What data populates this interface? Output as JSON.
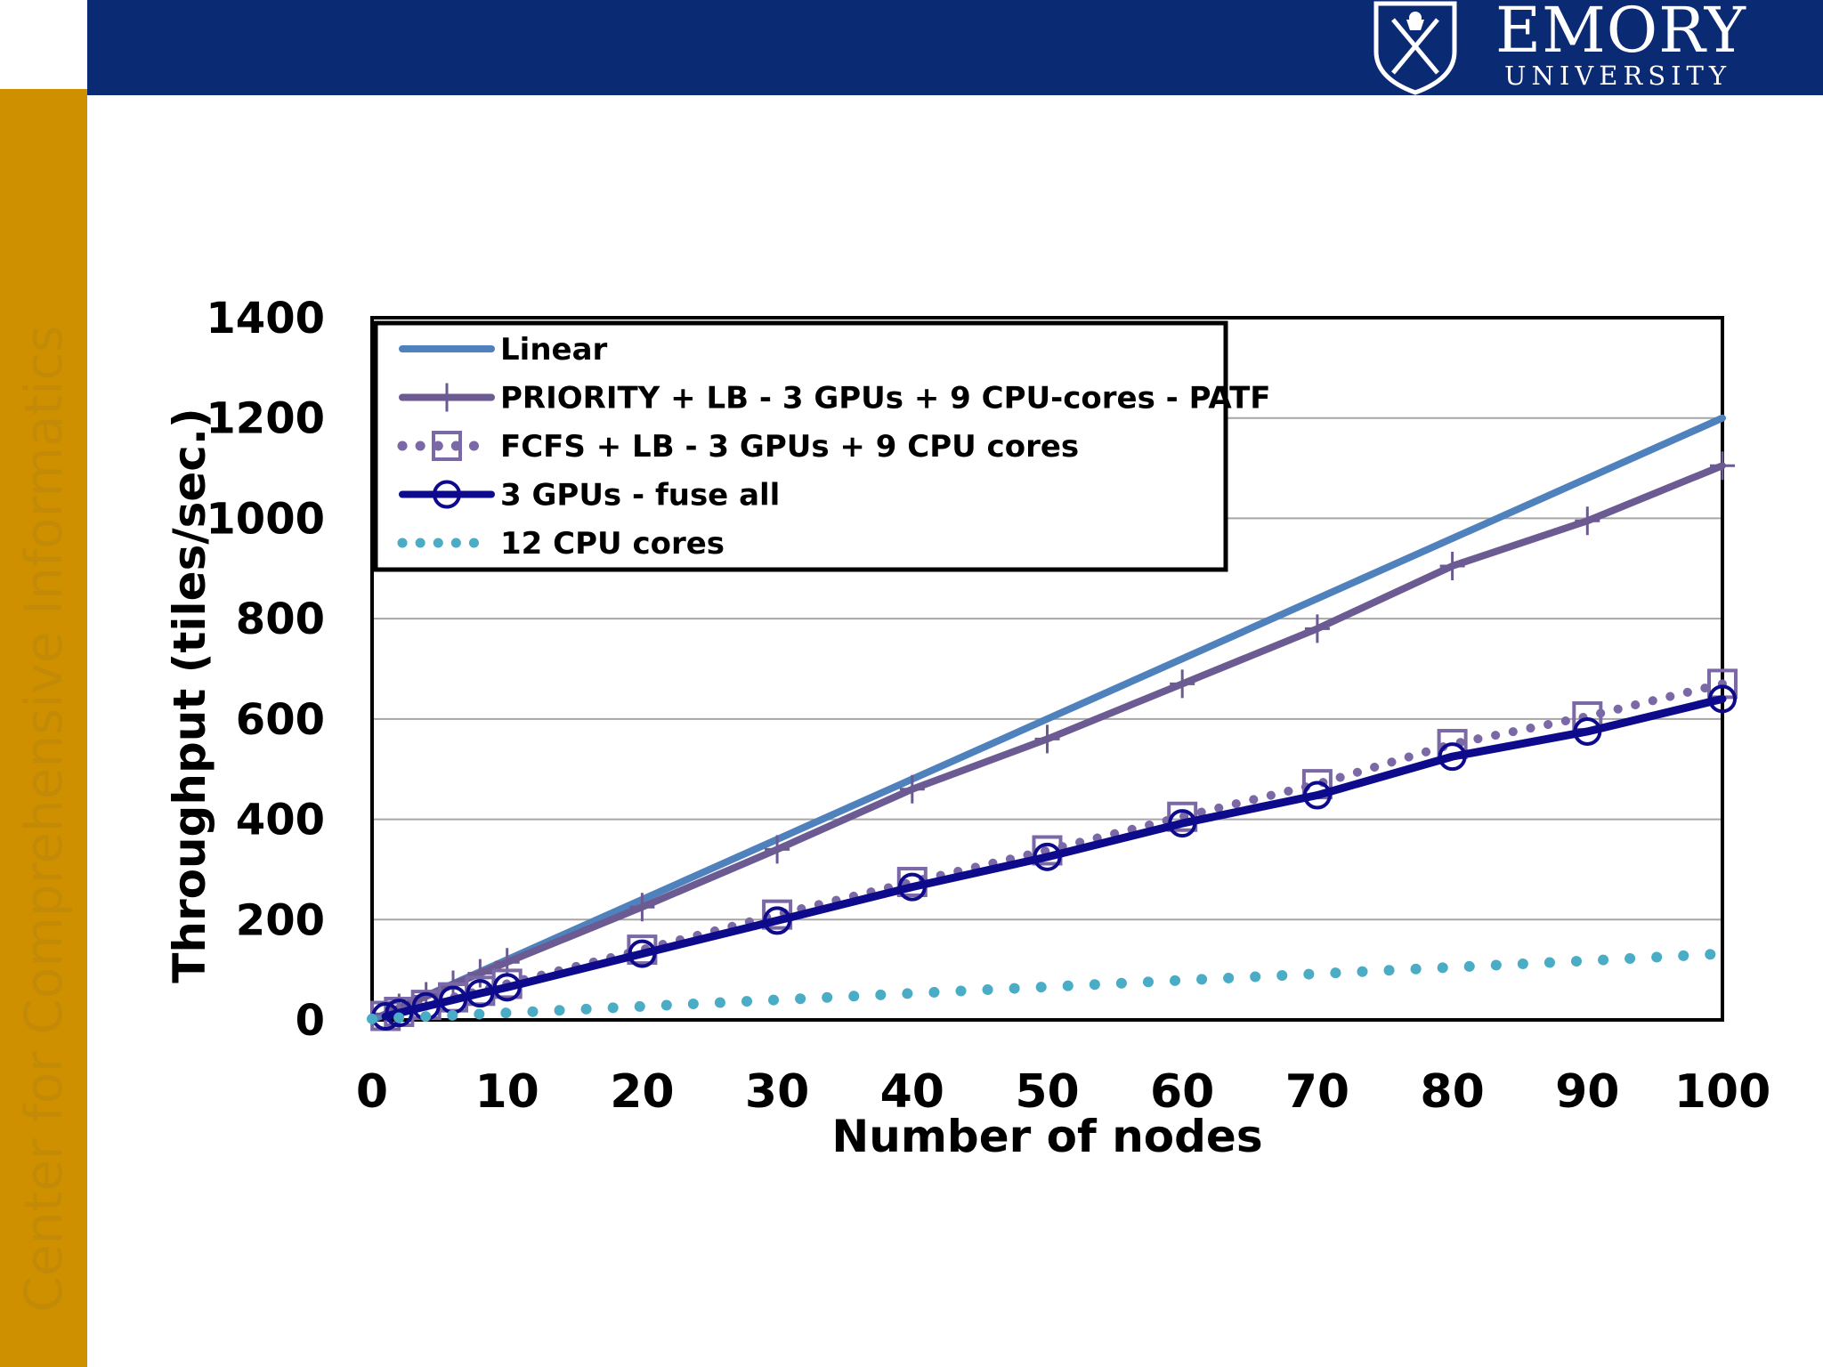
{
  "header": {
    "brand_name": "EMORY",
    "brand_sub": "UNIVERSITY",
    "bar_color": "#0b2a74"
  },
  "sidebar": {
    "label": "Center for Comprehensive Informatics",
    "color": "#cf9000"
  },
  "chart_data": {
    "type": "line",
    "title": "",
    "xlabel": "Number of nodes",
    "ylabel": "Throughput (tiles/sec.)",
    "xlim": [
      0,
      100
    ],
    "ylim": [
      0,
      1400
    ],
    "xticks": [
      0,
      10,
      20,
      30,
      40,
      50,
      60,
      70,
      80,
      90,
      100
    ],
    "yticks": [
      0,
      200,
      400,
      600,
      800,
      1000,
      1200,
      1400
    ],
    "grid": true,
    "legend_position": "top-left",
    "series": [
      {
        "name": "Linear",
        "color": "#4f81bd",
        "style": "solid",
        "marker": "none",
        "x": [
          0,
          100
        ],
        "y": [
          0,
          1200
        ]
      },
      {
        "name": "PRIORITY + LB - 3 GPUs + 9 CPU-cores - PATF",
        "color": "#6c5a92",
        "style": "solid",
        "marker": "plus",
        "x": [
          1,
          2,
          4,
          6,
          8,
          10,
          20,
          30,
          40,
          50,
          60,
          70,
          80,
          90,
          100
        ],
        "y": [
          12,
          24,
          47,
          70,
          93,
          115,
          225,
          340,
          460,
          560,
          670,
          780,
          905,
          995,
          1105
        ]
      },
      {
        "name": "FCFS + LB - 3 GPUs + 9 CPU cores",
        "color": "#7b68a6",
        "style": "dotted",
        "marker": "square",
        "x": [
          1,
          2,
          4,
          6,
          8,
          10,
          20,
          30,
          40,
          50,
          60,
          70,
          80,
          90,
          100
        ],
        "y": [
          8,
          16,
          30,
          45,
          58,
          72,
          140,
          210,
          275,
          338,
          405,
          470,
          550,
          605,
          670
        ]
      },
      {
        "name": "3 GPUs - fuse all",
        "color": "#0d0a8c",
        "style": "solid",
        "marker": "circle",
        "x": [
          1,
          2,
          4,
          6,
          8,
          10,
          20,
          30,
          40,
          50,
          60,
          70,
          80,
          90,
          100
        ],
        "y": [
          7,
          14,
          27,
          40,
          53,
          65,
          132,
          198,
          265,
          325,
          392,
          448,
          525,
          575,
          640
        ]
      },
      {
        "name": "12 CPU cores",
        "color": "#4bacc6",
        "style": "dotted",
        "marker": "none",
        "x": [
          0,
          10,
          20,
          30,
          40,
          50,
          60,
          70,
          80,
          90,
          100
        ],
        "y": [
          2,
          14,
          27,
          40,
          53,
          66,
          79,
          92,
          105,
          118,
          132
        ]
      }
    ]
  }
}
